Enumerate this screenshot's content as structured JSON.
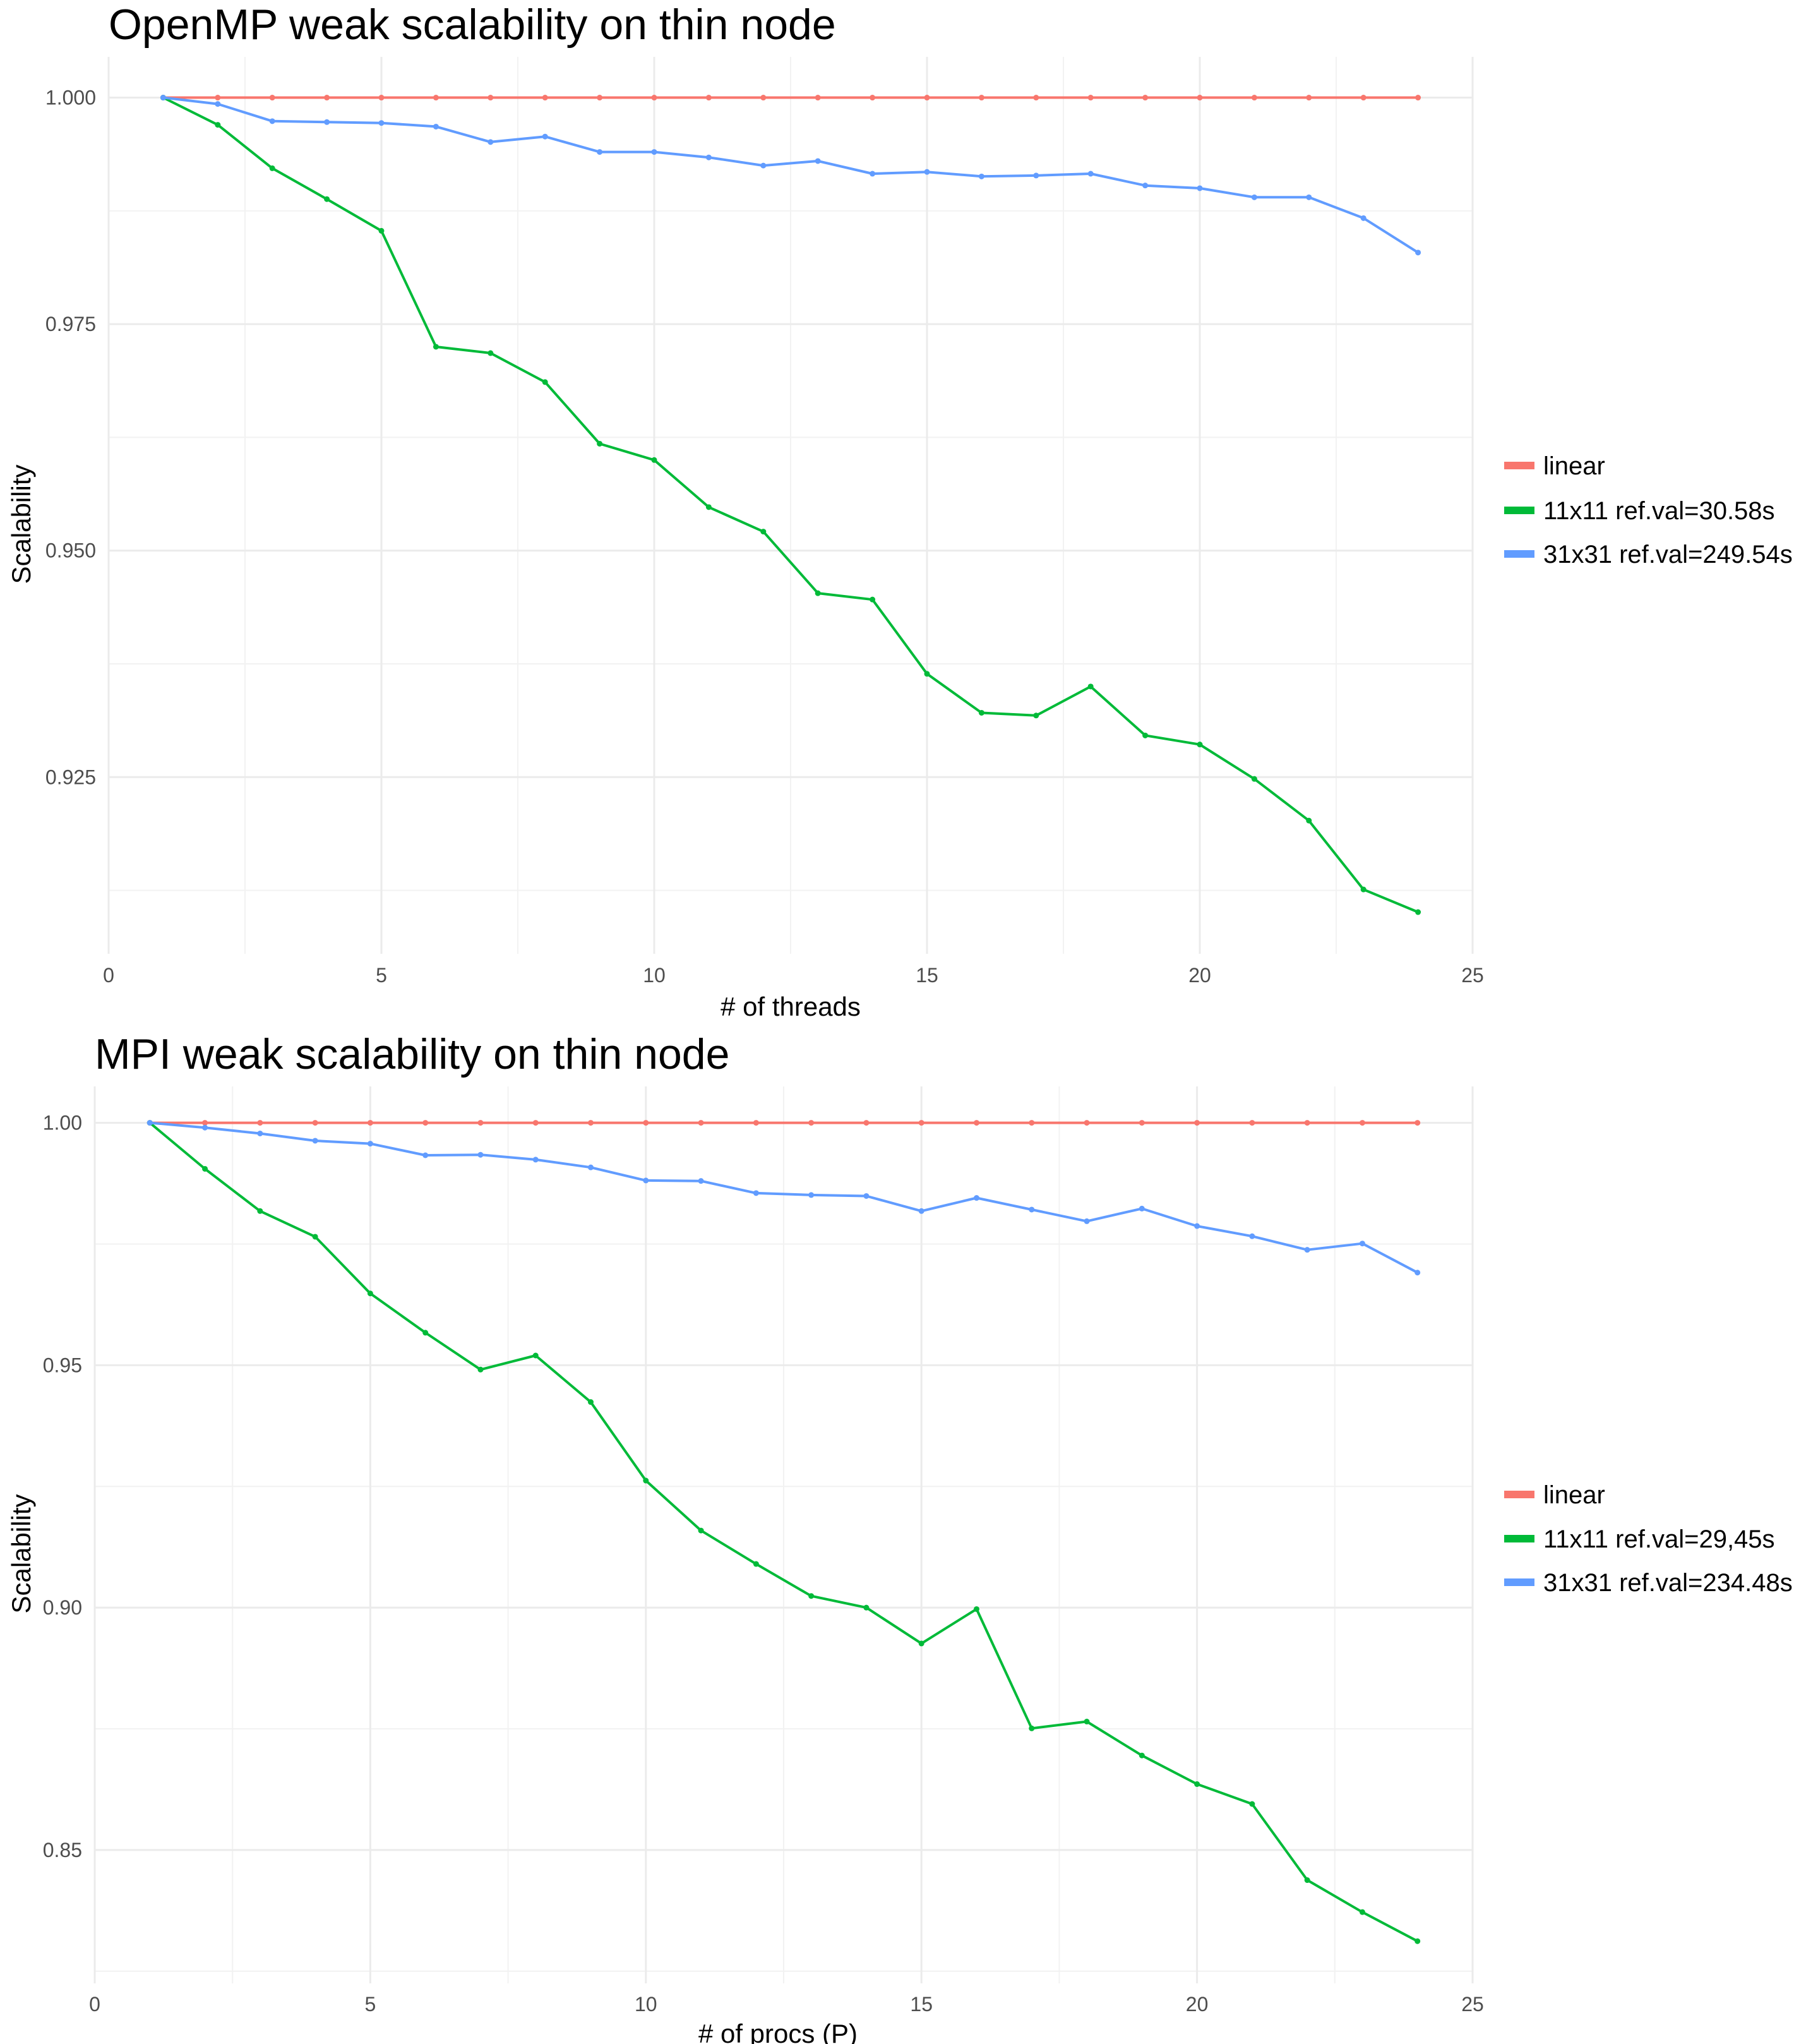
{
  "chart_data": [
    {
      "type": "line",
      "title": "OpenMP weak scalability on thin node",
      "xlabel": "# of threads",
      "ylabel": "Scalability",
      "xlim": [
        0,
        25
      ],
      "ylim": [
        0.9055,
        1.0045
      ],
      "xticks": [
        0,
        5,
        10,
        15,
        20,
        25
      ],
      "yticks": [
        0.925,
        0.95,
        0.975,
        1.0
      ],
      "ytick_labels": [
        "0.925",
        "0.950",
        "0.975",
        "1.000"
      ],
      "grid": true,
      "legend_position": "right",
      "x": [
        1,
        2,
        3,
        4,
        5,
        6,
        7,
        8,
        9,
        10,
        11,
        12,
        13,
        14,
        15,
        16,
        17,
        18,
        19,
        20,
        21,
        22,
        23,
        24
      ],
      "series": [
        {
          "name": "linear",
          "color": "#F8766D",
          "values": [
            1,
            1,
            1,
            1,
            1,
            1,
            1,
            1,
            1,
            1,
            1,
            1,
            1,
            1,
            1,
            1,
            1,
            1,
            1,
            1,
            1,
            1,
            1,
            1
          ]
        },
        {
          "name": "11x11 ref.val=30.58s",
          "color": "#00BA38",
          "values": [
            1.0,
            0.997,
            0.9922,
            0.9888,
            0.9853,
            0.9725,
            0.9718,
            0.9686,
            0.9618,
            0.96,
            0.9548,
            0.9521,
            0.9453,
            0.9446,
            0.9364,
            0.9321,
            0.9318,
            0.935,
            0.9296,
            0.9286,
            0.9248,
            0.9202,
            0.9126,
            0.9101
          ]
        },
        {
          "name": "31x31 ref.val=249.54s",
          "color": "#619CFF",
          "values": [
            1.0,
            0.9993,
            0.9974,
            0.9973,
            0.9972,
            0.9968,
            0.9951,
            0.9957,
            0.994,
            0.994,
            0.9934,
            0.9925,
            0.993,
            0.9916,
            0.9918,
            0.9913,
            0.9914,
            0.9916,
            0.9903,
            0.99,
            0.989,
            0.989,
            0.9867,
            0.9829
          ]
        }
      ]
    },
    {
      "type": "line",
      "title": "MPI weak scalability on thin node",
      "xlabel": "# of procs (P)",
      "ylabel": "Scalability",
      "xlim": [
        0,
        25
      ],
      "ylim": [
        0.8225,
        1.0075
      ],
      "xticks": [
        0,
        5,
        10,
        15,
        20,
        25
      ],
      "yticks": [
        0.85,
        0.9,
        0.95,
        1.0
      ],
      "ytick_labels": [
        "0.85",
        "0.90",
        "0.95",
        "1.00"
      ],
      "grid": true,
      "legend_position": "right",
      "x": [
        1,
        2,
        3,
        4,
        5,
        6,
        7,
        8,
        9,
        10,
        11,
        12,
        13,
        14,
        15,
        16,
        17,
        18,
        19,
        20,
        21,
        22,
        23,
        24
      ],
      "series": [
        {
          "name": "linear",
          "color": "#F8766D",
          "values": [
            1,
            1,
            1,
            1,
            1,
            1,
            1,
            1,
            1,
            1,
            1,
            1,
            1,
            1,
            1,
            1,
            1,
            1,
            1,
            1,
            1,
            1,
            1,
            1
          ]
        },
        {
          "name": "11x11 ref.val=29,45s",
          "color": "#00BA38",
          "values": [
            1.0,
            0.9905,
            0.9818,
            0.9765,
            0.9648,
            0.9567,
            0.9491,
            0.952,
            0.9424,
            0.9262,
            0.9159,
            0.909,
            0.9024,
            0.9,
            0.8926,
            0.8997,
            0.8751,
            0.8765,
            0.8695,
            0.8636,
            0.8595,
            0.8438,
            0.8372,
            0.8312
          ]
        },
        {
          "name": "31x31 ref.val=234.48s",
          "color": "#619CFF",
          "values": [
            1.0,
            0.999,
            0.9978,
            0.9963,
            0.9957,
            0.9933,
            0.9934,
            0.9924,
            0.9908,
            0.9881,
            0.988,
            0.9855,
            0.9851,
            0.9849,
            0.9818,
            0.9845,
            0.9821,
            0.9797,
            0.9823,
            0.9787,
            0.9766,
            0.9738,
            0.9751,
            0.9691
          ]
        }
      ]
    }
  ]
}
